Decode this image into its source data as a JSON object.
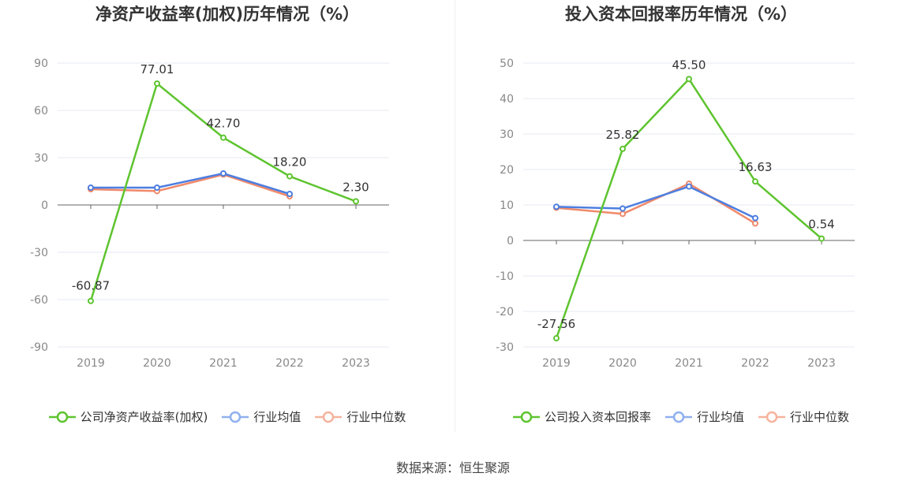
{
  "source": "数据来源：恒生聚源",
  "chart_data": [
    {
      "type": "line",
      "title": "净资产收益率(加权)历年情况（%）",
      "categories": [
        "2019",
        "2020",
        "2021",
        "2022",
        "2023"
      ],
      "yticks": [
        -90,
        -60,
        -30,
        0,
        30,
        60,
        90
      ],
      "ylim": [
        -90,
        90
      ],
      "grid": true,
      "legend_placement": "bottom",
      "series": [
        {
          "name": "公司净资产收益率(加权)",
          "color": "#5ec42f",
          "values": [
            -60.87,
            77.01,
            42.7,
            18.2,
            2.3
          ],
          "labels": [
            "-60.87",
            "77.01",
            "42.70",
            "18.20",
            "2.30"
          ]
        },
        {
          "name": "行业均值",
          "color": "#4d7ee0",
          "values": [
            11.0,
            11.0,
            20.0,
            7.0,
            null
          ]
        },
        {
          "name": "行业中位数",
          "color": "#f08a6b",
          "values": [
            10.0,
            8.8,
            19.3,
            5.5,
            null
          ]
        }
      ]
    },
    {
      "type": "line",
      "title": "投入资本回报率历年情况（%）",
      "categories": [
        "2019",
        "2020",
        "2021",
        "2022",
        "2023"
      ],
      "yticks": [
        -30,
        -20,
        -10,
        0,
        10,
        20,
        30,
        40,
        50
      ],
      "ylim": [
        -30,
        50
      ],
      "grid": true,
      "legend_placement": "bottom",
      "series": [
        {
          "name": "公司投入资本回报率",
          "color": "#5ec42f",
          "values": [
            -27.56,
            25.82,
            45.5,
            16.63,
            0.54
          ],
          "labels": [
            "-27.56",
            "25.82",
            "45.50",
            "16.63",
            "0.54"
          ]
        },
        {
          "name": "行业均值",
          "color": "#4d7ee0",
          "values": [
            9.5,
            9.0,
            15.2,
            6.3,
            null
          ]
        },
        {
          "name": "行业中位数",
          "color": "#f08a6b",
          "values": [
            9.2,
            7.5,
            16.0,
            4.8,
            null
          ]
        }
      ]
    }
  ]
}
